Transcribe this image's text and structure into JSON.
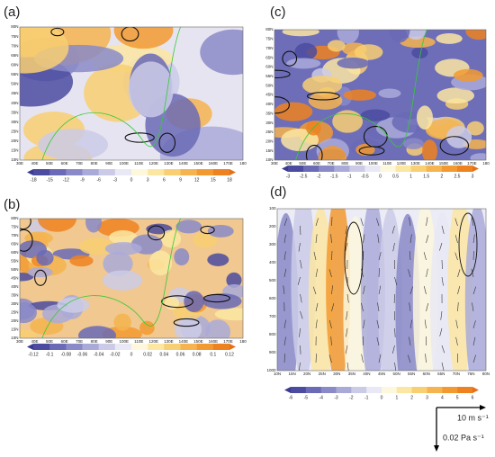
{
  "panels": [
    {
      "label": "(a)",
      "x_labels": [
        "30E",
        "40E",
        "50E",
        "60E",
        "70E",
        "80E",
        "90E",
        "100E",
        "110E",
        "120E",
        "130E",
        "140E",
        "150E",
        "160E",
        "170E",
        "180"
      ],
      "y_labels": [
        "10N",
        "15N",
        "20N",
        "25N",
        "30N",
        "35N",
        "40N",
        "45N",
        "50N",
        "55N",
        "60N",
        "65N",
        "70N",
        "75N",
        "80N"
      ],
      "colorbar": [
        "-18",
        "-15",
        "-12",
        "-9",
        "-6",
        "-3",
        "0",
        "3",
        "6",
        "9",
        "12",
        "15",
        "18"
      ]
    },
    {
      "label": "(b)",
      "x_labels": [
        "30E",
        "40E",
        "50E",
        "60E",
        "70E",
        "80E",
        "90E",
        "100E",
        "110E",
        "120E",
        "130E",
        "140E",
        "150E",
        "160E",
        "170E",
        "180"
      ],
      "y_labels": [
        "10N",
        "15N",
        "20N",
        "25N",
        "30N",
        "35N",
        "40N",
        "45N",
        "50N",
        "55N",
        "60N",
        "65N",
        "70N",
        "75N",
        "80N"
      ],
      "colorbar": [
        "-0.12",
        "-0.1",
        "-0.08",
        "-0.06",
        "-0.04",
        "-0.02",
        "0",
        "0.02",
        "0.04",
        "0.06",
        "0.08",
        "0.1",
        "0.12"
      ]
    },
    {
      "label": "(c)",
      "x_labels": [
        "30E",
        "40E",
        "50E",
        "60E",
        "70E",
        "80E",
        "90E",
        "100E",
        "110E",
        "120E",
        "130E",
        "140E",
        "150E",
        "160E",
        "170E",
        "180"
      ],
      "y_labels": [
        "10N",
        "15N",
        "20N",
        "25N",
        "30N",
        "35N",
        "40N",
        "45N",
        "50N",
        "55N",
        "60N",
        "65N",
        "70N",
        "75N",
        "80N"
      ],
      "colorbar": [
        "-3",
        "-2.5",
        "-2",
        "-1.5",
        "-1",
        "-0.5",
        "0",
        "0.5",
        "1",
        "1.5",
        "2",
        "2.5",
        "3"
      ]
    },
    {
      "label": "(d)",
      "x_labels": [
        "10N",
        "15N",
        "20N",
        "25N",
        "30N",
        "35N",
        "40N",
        "45N",
        "50N",
        "55N",
        "60N",
        "65N",
        "70N",
        "75N",
        "80N"
      ],
      "y_labels": [
        "1000",
        "900",
        "800",
        "700",
        "600",
        "500",
        "400",
        "300",
        "200",
        "100"
      ],
      "colorbar": [
        "-6",
        "-5",
        "-4",
        "-3",
        "-2",
        "-1",
        "0",
        "1",
        "2",
        "3",
        "4",
        "5",
        "6"
      ]
    }
  ],
  "reference": {
    "u": "10 m s⁻¹",
    "w": "0.02 Pa s⁻¹"
  }
}
